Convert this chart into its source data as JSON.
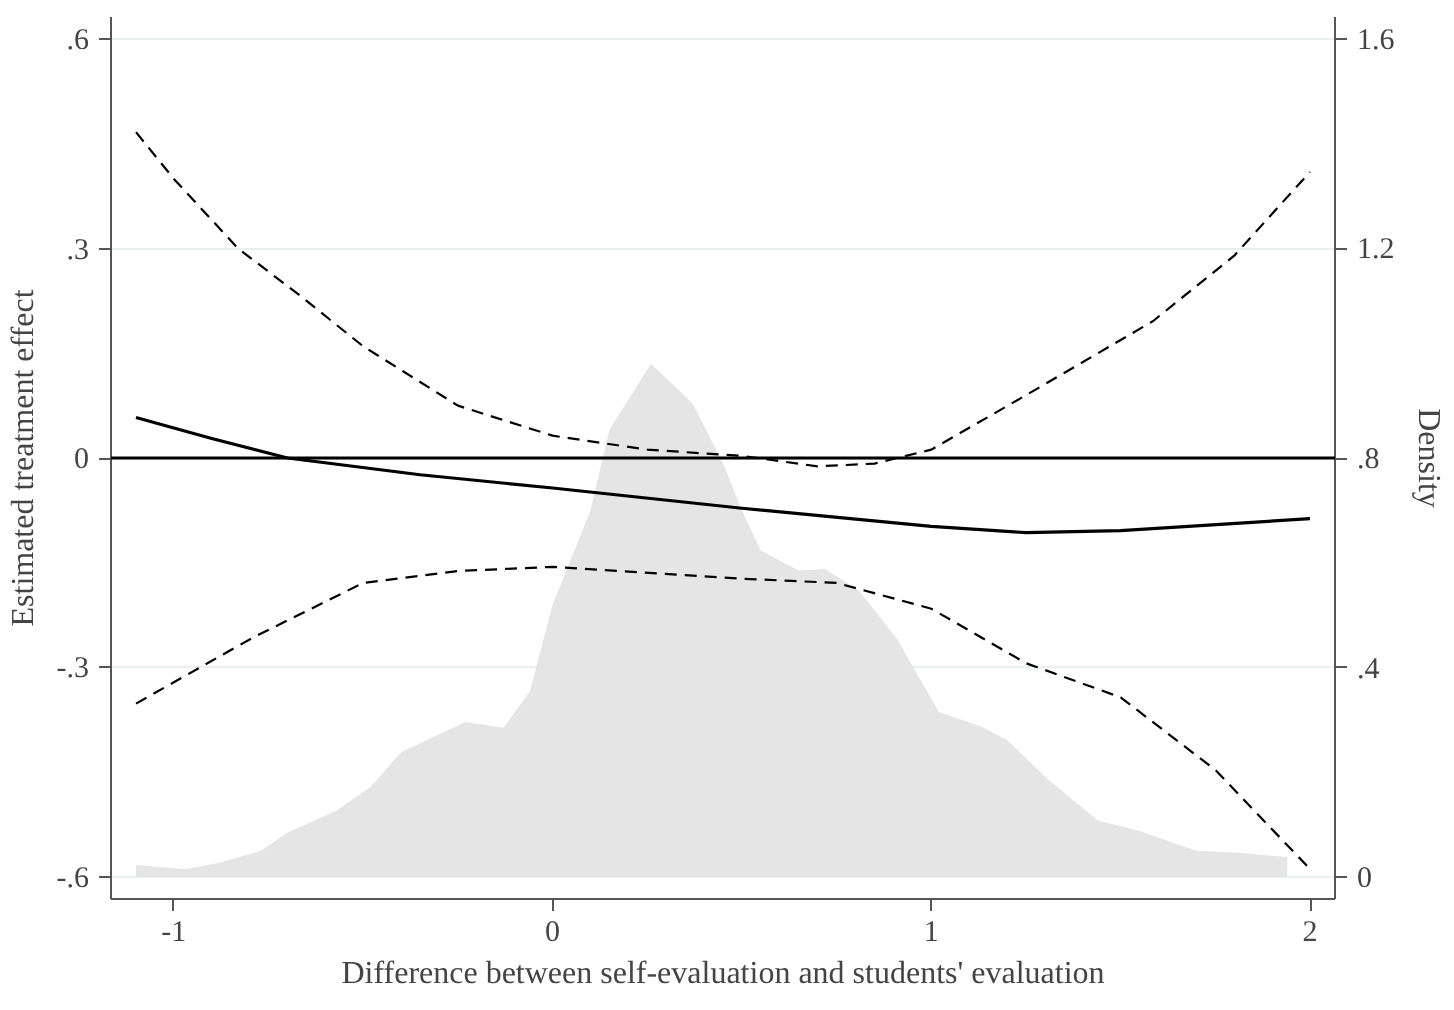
{
  "chart_data": {
    "type": "line",
    "xlabel": "Difference between self-evaluation and students' evaluation",
    "ylabel": "Estimated treatment effect",
    "y2label": "Density",
    "xlim": [
      -1.166,
      2.066
    ],
    "xticks": [
      -1,
      0,
      1,
      2
    ],
    "ylim": [
      -0.632,
      0.632
    ],
    "yticks": [
      {
        "value": -0.6,
        "label": "-.6"
      },
      {
        "value": -0.3,
        "label": "-.3"
      },
      0,
      {
        "value": 0.3,
        "label": ".3"
      },
      {
        "value": 0.6,
        "label": ".6"
      }
    ],
    "y2lim": [
      -0.042,
      1.642
    ],
    "y2ticks": [
      0,
      {
        "value": 0.4,
        "label": ".4"
      },
      {
        "value": 0.8,
        "label": ".8"
      },
      {
        "value": 1.2,
        "label": "1.2"
      },
      {
        "value": 1.6,
        "label": "1.6"
      }
    ],
    "grid": "y",
    "ref_lines": [
      {
        "axis": "y",
        "value": 0,
        "color": "#000000",
        "line_style": "solid"
      }
    ],
    "series": [
      {
        "type": "area",
        "axis": "y2",
        "color": "#e5e5e5",
        "x": [
          -1.1,
          -0.97,
          -0.88,
          -0.77,
          -0.7,
          -0.57,
          -0.48,
          -0.4,
          -0.33,
          -0.23,
          -0.13,
          -0.06,
          0.0,
          0.1,
          0.15,
          0.26,
          0.37,
          0.45,
          0.5,
          0.55,
          0.65,
          0.72,
          0.81,
          0.91,
          1.02,
          1.13,
          1.2,
          1.31,
          1.44,
          1.55,
          1.7,
          1.82,
          1.94
        ],
        "values": [
          0.023,
          0.015,
          0.027,
          0.05,
          0.085,
          0.127,
          0.173,
          0.238,
          0.262,
          0.296,
          0.285,
          0.354,
          0.52,
          0.7,
          0.854,
          0.98,
          0.904,
          0.79,
          0.7,
          0.623,
          0.585,
          0.588,
          0.546,
          0.454,
          0.315,
          0.288,
          0.262,
          0.185,
          0.108,
          0.088,
          0.05,
          0.046,
          0.038
        ]
      },
      {
        "color": "#000000",
        "line_style": "solid",
        "x": [
          -1.1,
          -0.9,
          -0.7,
          -0.35,
          0,
          0.5,
          1,
          1.25,
          1.5,
          2
        ],
        "values": [
          0.058,
          0.028,
          0,
          -0.024,
          -0.043,
          -0.072,
          -0.098,
          -0.107,
          -0.104,
          -0.087
        ]
      },
      {
        "color": "#000000",
        "line_style": "dashed",
        "x": [
          -1.1,
          -1.0,
          -0.83,
          -0.67,
          -0.5,
          -0.25,
          0,
          0.25,
          0.5,
          0.7,
          0.85,
          1,
          1.25,
          1.585,
          1.8,
          2
        ],
        "values": [
          0.467,
          0.4,
          0.3,
          0.234,
          0.16,
          0.075,
          0.032,
          0.012,
          0.003,
          -0.012,
          -0.008,
          0.012,
          0.09,
          0.196,
          0.29,
          0.41
        ]
      },
      {
        "color": "#000000",
        "line_style": "dashed",
        "x": [
          -1.1,
          -0.79,
          -0.5,
          -0.25,
          0,
          0.5,
          0.75,
          1,
          1.25,
          1.5,
          1.75,
          2
        ],
        "values": [
          -0.352,
          -0.257,
          -0.179,
          -0.162,
          -0.156,
          -0.173,
          -0.179,
          -0.216,
          -0.294,
          -0.343,
          -0.447,
          -0.589
        ]
      }
    ]
  }
}
